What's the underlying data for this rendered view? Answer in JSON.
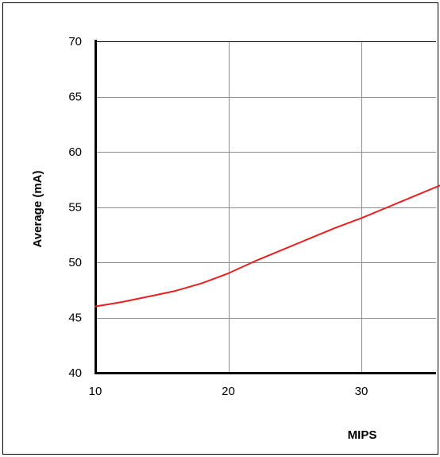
{
  "chart_data": {
    "type": "line",
    "title": "",
    "xlabel": "MIPS",
    "ylabel": "Average  (mA)",
    "xlim": [
      10,
      36
    ],
    "ylim": [
      40,
      70
    ],
    "x_ticks": [
      10,
      20,
      30
    ],
    "y_ticks": [
      40,
      45,
      50,
      55,
      60,
      65,
      70
    ],
    "grid": true,
    "series": [
      {
        "color": "#e8201f",
        "x": [
          10,
          12,
          14,
          16,
          18,
          20,
          22,
          24,
          26,
          28,
          30,
          32,
          34,
          36
        ],
        "y": [
          46.0,
          46.4,
          46.9,
          47.4,
          48.1,
          49.0,
          50.1,
          51.1,
          52.1,
          53.1,
          54.0,
          55.0,
          56.0,
          57.0
        ]
      }
    ]
  }
}
